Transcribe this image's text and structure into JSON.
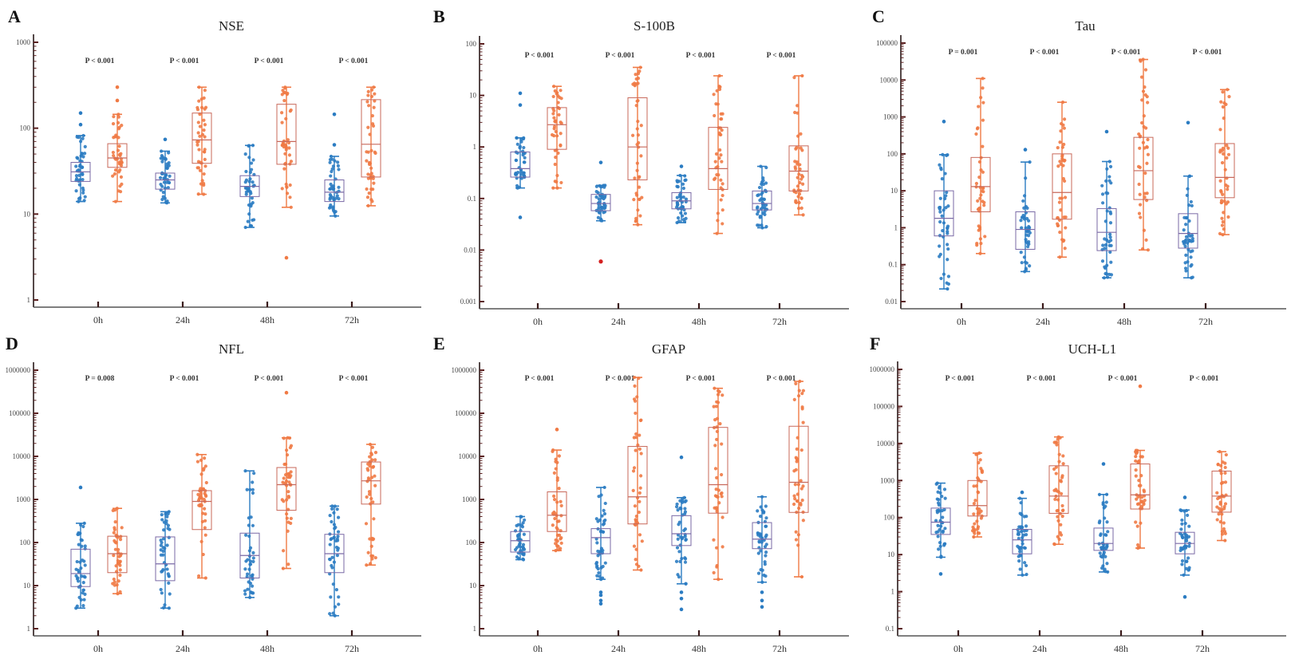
{
  "figure": {
    "colors": {
      "group1": "#2b7cc2",
      "group2": "#f07a45",
      "group1_box": "#7a6aa6",
      "group2_box": "#c8685a",
      "special_outlier": "#d42020"
    }
  },
  "chart_data": [
    {
      "type": "box",
      "letter": "A",
      "title": "NSE",
      "scale": "log",
      "yticks": [
        "1",
        "10",
        "100",
        "1000"
      ],
      "ylim": [
        1,
        1000
      ],
      "categories": [
        "0h",
        "24h",
        "48h",
        "72h"
      ],
      "pvalues": [
        "P < 0.001",
        "P < 0.001",
        "P < 0.001",
        "P < 0.001"
      ],
      "series": [
        {
          "name": "group1",
          "boxes": [
            {
              "min": 14,
              "q1": 24,
              "median": 31,
              "q3": 40,
              "max": 82,
              "outliers": [
                150,
                110
              ]
            },
            {
              "min": 13.5,
              "q1": 19.5,
              "median": 25,
              "q3": 30,
              "max": 54,
              "outliers": [
                74
              ]
            },
            {
              "min": 7,
              "q1": 16,
              "median": 21,
              "q3": 28,
              "max": 63,
              "outliers": []
            },
            {
              "min": 9.5,
              "q1": 14,
              "median": 18,
              "q3": 25,
              "max": 47,
              "outliers": [
                145,
                64
              ]
            }
          ]
        },
        {
          "name": "group2",
          "boxes": [
            {
              "min": 14,
              "q1": 35,
              "median": 45,
              "q3": 66,
              "max": 145,
              "outliers": [
                300,
                210
              ]
            },
            {
              "min": 17,
              "q1": 39,
              "median": 73,
              "q3": 150,
              "max": 300,
              "outliers": []
            },
            {
              "min": 12,
              "q1": 38,
              "median": 70,
              "q3": 190,
              "max": 300,
              "outliers": [
                3.1
              ]
            },
            {
              "min": 12.5,
              "q1": 27,
              "median": 65,
              "q3": 215,
              "max": 300,
              "outliers": []
            }
          ]
        }
      ]
    },
    {
      "type": "box",
      "letter": "B",
      "title": "S-100B",
      "scale": "log",
      "yticks": [
        "0.001",
        "0.01",
        "0.1",
        "1",
        "10",
        "100"
      ],
      "ylim": [
        0.001,
        100
      ],
      "categories": [
        "0h",
        "24h",
        "48h",
        "72h"
      ],
      "pvalues": [
        "P < 0.001",
        "P < 0.001",
        "P < 0.001",
        "P < 0.001"
      ],
      "series": [
        {
          "name": "group1",
          "boxes": [
            {
              "min": 0.16,
              "q1": 0.26,
              "median": 0.38,
              "q3": 0.8,
              "max": 1.5,
              "outliers": [
                11,
                6.5,
                0.043
              ]
            },
            {
              "min": 0.037,
              "q1": 0.058,
              "median": 0.08,
              "q3": 0.12,
              "max": 0.18,
              "outliers": [
                0.5
              ],
              "special_outliers": [
                0.006
              ]
            },
            {
              "min": 0.034,
              "q1": 0.063,
              "median": 0.09,
              "q3": 0.13,
              "max": 0.28,
              "outliers": [
                0.42
              ]
            },
            {
              "min": 0.027,
              "q1": 0.06,
              "median": 0.08,
              "q3": 0.14,
              "max": 0.42,
              "outliers": []
            }
          ]
        },
        {
          "name": "group2",
          "boxes": [
            {
              "min": 0.16,
              "q1": 0.9,
              "median": 2.7,
              "q3": 5.8,
              "max": 15,
              "outliers": []
            },
            {
              "min": 0.031,
              "q1": 0.23,
              "median": 1.0,
              "q3": 9,
              "max": 35,
              "outliers": []
            },
            {
              "min": 0.021,
              "q1": 0.15,
              "median": 0.38,
              "q3": 2.4,
              "max": 24,
              "outliers": []
            },
            {
              "min": 0.048,
              "q1": 0.14,
              "median": 0.34,
              "q3": 1.05,
              "max": 24,
              "outliers": []
            }
          ]
        }
      ]
    },
    {
      "type": "box",
      "letter": "C",
      "title": "Tau",
      "scale": "log",
      "yticks": [
        "0.01",
        "0.1",
        "1",
        "10",
        "100",
        "1000",
        "10000",
        "100000"
      ],
      "ylim": [
        0.01,
        100000
      ],
      "categories": [
        "0h",
        "24h",
        "48h",
        "72h"
      ],
      "pvalues": [
        "P = 0.001",
        "P < 0.001",
        "P < 0.001",
        "P < 0.001"
      ],
      "series": [
        {
          "name": "group1",
          "boxes": [
            {
              "min": 0.022,
              "q1": 0.6,
              "median": 1.8,
              "q3": 10,
              "max": 95,
              "outliers": [
                750
              ]
            },
            {
              "min": 0.065,
              "q1": 0.26,
              "median": 0.9,
              "q3": 2.7,
              "max": 60,
              "outliers": [
                130
              ]
            },
            {
              "min": 0.044,
              "q1": 0.24,
              "median": 0.75,
              "q3": 3.3,
              "max": 62,
              "outliers": [
                400
              ]
            },
            {
              "min": 0.044,
              "q1": 0.28,
              "median": 0.7,
              "q3": 2.4,
              "max": 25,
              "outliers": [
                700
              ]
            }
          ]
        },
        {
          "name": "group2",
          "boxes": [
            {
              "min": 0.2,
              "q1": 2.7,
              "median": 13,
              "q3": 80,
              "max": 11000,
              "outliers": []
            },
            {
              "min": 0.16,
              "q1": 1.7,
              "median": 9,
              "q3": 100,
              "max": 2500,
              "outliers": []
            },
            {
              "min": 0.25,
              "q1": 5.8,
              "median": 35,
              "q3": 280,
              "max": 36000,
              "outliers": []
            },
            {
              "min": 0.65,
              "q1": 6.5,
              "median": 23,
              "q3": 190,
              "max": 5500,
              "outliers": []
            }
          ]
        }
      ]
    },
    {
      "type": "box",
      "letter": "D",
      "title": "NFL",
      "scale": "log",
      "yticks": [
        "1",
        "10",
        "100",
        "1000",
        "10000",
        "100000",
        "1000000"
      ],
      "ylim": [
        1,
        1000000
      ],
      "categories": [
        "0h",
        "24h",
        "48h",
        "72h"
      ],
      "pvalues": [
        "P = 0.008",
        "P < 0.001",
        "P < 0.001",
        "P < 0.001"
      ],
      "series": [
        {
          "name": "group1",
          "boxes": [
            {
              "min": 3,
              "q1": 9.5,
              "median": 19,
              "q3": 70,
              "max": 280,
              "outliers": [
                1900
              ]
            },
            {
              "min": 3,
              "q1": 13,
              "median": 32,
              "q3": 135,
              "max": 520,
              "outliers": []
            },
            {
              "min": 5.3,
              "q1": 15,
              "median": 50,
              "q3": 165,
              "max": 4600,
              "outliers": []
            },
            {
              "min": 2,
              "q1": 20,
              "median": 55,
              "q3": 155,
              "max": 700,
              "outliers": []
            }
          ]
        },
        {
          "name": "group2",
          "boxes": [
            {
              "min": 6.5,
              "q1": 20,
              "median": 55,
              "q3": 140,
              "max": 620,
              "outliers": []
            },
            {
              "min": 15,
              "q1": 200,
              "median": 900,
              "q3": 1600,
              "max": 11000,
              "outliers": []
            },
            {
              "min": 25,
              "q1": 560,
              "median": 2200,
              "q3": 5500,
              "max": 27000,
              "outliers": [
                300000
              ]
            },
            {
              "min": 30,
              "q1": 780,
              "median": 2700,
              "q3": 7400,
              "max": 19000,
              "outliers": []
            }
          ]
        }
      ]
    },
    {
      "type": "box",
      "letter": "E",
      "title": "GFAP",
      "scale": "log",
      "yticks": [
        "1",
        "10",
        "100",
        "1000",
        "10000",
        "100000",
        "1000000"
      ],
      "ylim": [
        1,
        1000000
      ],
      "categories": [
        "0h",
        "24h",
        "48h",
        "72h"
      ],
      "pvalues": [
        "P < 0.001",
        "P < 0.001",
        "P < 0.001",
        "P < 0.001"
      ],
      "series": [
        {
          "name": "group1",
          "boxes": [
            {
              "min": 40,
              "q1": 60,
              "median": 110,
              "q3": 180,
              "max": 400,
              "outliers": []
            },
            {
              "min": 14,
              "q1": 55,
              "median": 130,
              "q3": 210,
              "max": 1900,
              "outliers": [
                7,
                6,
                4.5,
                3.8
              ]
            },
            {
              "min": 11,
              "q1": 85,
              "median": 160,
              "q3": 420,
              "max": 1100,
              "outliers": [
                9500,
                2.8,
                5,
                7
              ]
            },
            {
              "min": 12,
              "q1": 72,
              "median": 120,
              "q3": 290,
              "max": 1150,
              "outliers": [
                3.2,
                4.5,
                7
              ]
            }
          ]
        },
        {
          "name": "group2",
          "boxes": [
            {
              "min": 65,
              "q1": 180,
              "median": 430,
              "q3": 1500,
              "max": 14000,
              "outliers": [
                42000
              ]
            },
            {
              "min": 23,
              "q1": 270,
              "median": 1150,
              "q3": 17000,
              "max": 680000,
              "outliers": []
            },
            {
              "min": 14,
              "q1": 480,
              "median": 2200,
              "q3": 47000,
              "max": 380000,
              "outliers": []
            },
            {
              "min": 16,
              "q1": 500,
              "median": 2500,
              "q3": 50000,
              "max": 550000,
              "outliers": []
            }
          ]
        }
      ]
    },
    {
      "type": "box",
      "letter": "F",
      "title": "UCH-L1",
      "scale": "log",
      "yticks": [
        "0.1",
        "1",
        "10",
        "100",
        "1000",
        "10000",
        "100000",
        "1000000"
      ],
      "ylim": [
        0.1,
        1000000
      ],
      "categories": [
        "0h",
        "24h",
        "48h",
        "72h"
      ],
      "pvalues": [
        "P < 0.001",
        "P < 0.001",
        "P < 0.001",
        "P < 0.001"
      ],
      "series": [
        {
          "name": "group1",
          "boxes": [
            {
              "min": 8.5,
              "q1": 35,
              "median": 75,
              "q3": 180,
              "max": 850,
              "outliers": [
                3
              ]
            },
            {
              "min": 2.8,
              "q1": 10.5,
              "median": 25,
              "q3": 48,
              "max": 330,
              "outliers": [
                480
              ]
            },
            {
              "min": 3.4,
              "q1": 13,
              "median": 20,
              "q3": 52,
              "max": 420,
              "outliers": [
                2800
              ]
            },
            {
              "min": 2.8,
              "q1": 10.5,
              "median": 20,
              "q3": 40,
              "max": 160,
              "outliers": [
                0.72,
                350
              ]
            }
          ]
        },
        {
          "name": "group2",
          "boxes": [
            {
              "min": 30,
              "q1": 110,
              "median": 210,
              "q3": 1000,
              "max": 5500,
              "outliers": []
            },
            {
              "min": 19,
              "q1": 130,
              "median": 380,
              "q3": 2500,
              "max": 15000,
              "outliers": []
            },
            {
              "min": 15,
              "q1": 170,
              "median": 410,
              "q3": 2800,
              "max": 6500,
              "outliers": [
                350000
              ]
            },
            {
              "min": 24,
              "q1": 140,
              "median": 380,
              "q3": 1800,
              "max": 6000,
              "outliers": []
            }
          ]
        }
      ]
    }
  ]
}
